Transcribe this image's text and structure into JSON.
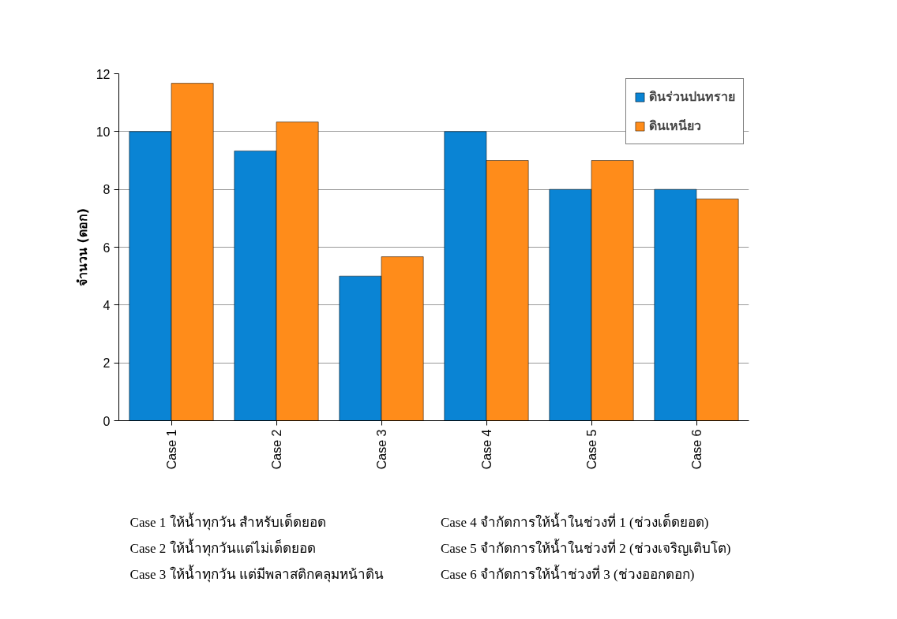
{
  "chart_data": {
    "type": "bar",
    "ylabel": "จำนวน (ดอก)",
    "categories": [
      "Case 1",
      "Case 2",
      "Case 3",
      "Case 4",
      "Case 5",
      "Case 6"
    ],
    "series": [
      {
        "name": "ดินร่วนปนทราย",
        "color": "#0a84d4",
        "values": [
          10,
          9.33,
          5,
          10,
          8,
          8
        ]
      },
      {
        "name": "ดินเหนียว",
        "color": "#ff8c1a",
        "values": [
          11.67,
          10.33,
          5.67,
          9,
          9,
          7.67
        ]
      }
    ],
    "ylim": [
      0,
      12
    ],
    "yticks": [
      0,
      2,
      4,
      6,
      8,
      10,
      12
    ],
    "grid": "y",
    "legend": "top right",
    "annotations": [
      "Case 1 ให้น้ำทุกวัน สำหรับเด็ดยอด",
      "Case 2 ให้น้ำทุกวันแต่ไม่เด็ดยอด",
      "Case 3 ให้น้ำทุกวัน แต่มีพลาสติกคลุมหน้าดิน",
      "Case 4 จำกัดการให้น้ำในช่วงที่ 1  (ช่วงเด็ดยอด)",
      "Case 5 จำกัดการให้น้ำในช่วงที่ 2 (ช่วงเจริญเติบโต)",
      "Case 6 จำกัดการให้น้ำช่วงที่ 3 (ช่วงออกดอก)"
    ]
  }
}
